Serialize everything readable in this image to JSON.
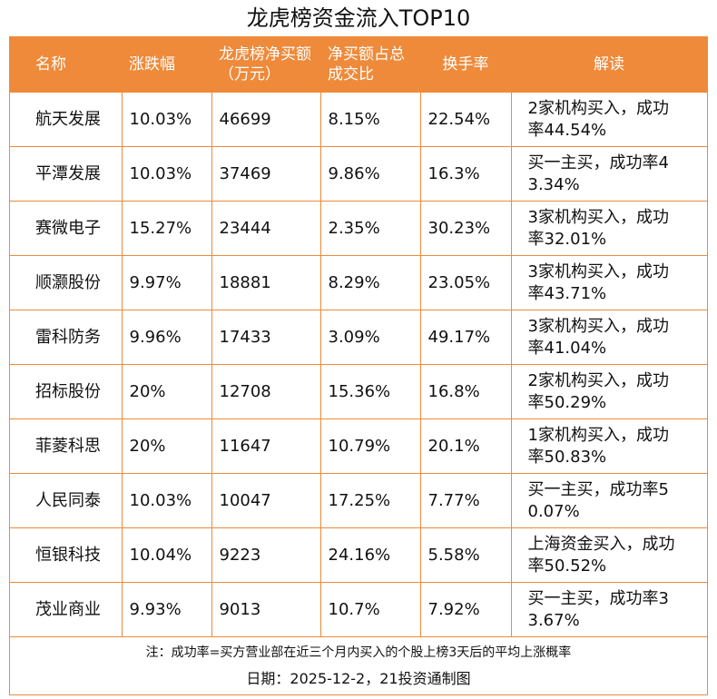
{
  "title": "龙虎榜资金流入TOP10",
  "table": {
    "headers": [
      "名称",
      "涨跌幅",
      "龙虎榜净买额（万元）",
      "净买额占总成交比",
      "换手率",
      "解读"
    ],
    "rows": [
      [
        "航天发展",
        "10.03%",
        "46699",
        "8.15%",
        "22.54%",
        "2家机构买入，成功率44.54%"
      ],
      [
        "平潭发展",
        "10.03%",
        "37469",
        "9.86%",
        "16.3%",
        "买一主买，成功率43.34%"
      ],
      [
        "赛微电子",
        "15.27%",
        "23444",
        "2.35%",
        "30.23%",
        "3家机构买入，成功率32.01%"
      ],
      [
        "顺灏股份",
        "9.97%",
        "18881",
        "8.29%",
        "23.05%",
        "3家机构买入，成功率43.71%"
      ],
      [
        "雷科防务",
        "9.96%",
        "17433",
        "3.09%",
        "49.17%",
        "3家机构买入，成功率41.04%"
      ],
      [
        "招标股份",
        "20%",
        "12708",
        "15.36%",
        "16.8%",
        "2家机构买入，成功率50.29%"
      ],
      [
        "菲菱科思",
        "20%",
        "11647",
        "10.79%",
        "20.1%",
        "1家机构买入，成功率50.83%"
      ],
      [
        "人民同泰",
        "10.03%",
        "10047",
        "17.25%",
        "7.77%",
        "买一主买，成功率50.07%"
      ],
      [
        "恒银科技",
        "10.04%",
        "9223",
        "24.16%",
        "5.58%",
        "上海资金买入，成功率50.52%"
      ],
      [
        "茂业商业",
        "9.93%",
        "9013",
        "10.7%",
        "7.92%",
        "买一主买，成功率33.67%"
      ]
    ]
  },
  "footer": {
    "note": "注：成功率=买方营业部在近三个月内买入的个股上榜3天后的平均上涨概率",
    "date": "日期：2025-12-2，21投资通制图"
  }
}
